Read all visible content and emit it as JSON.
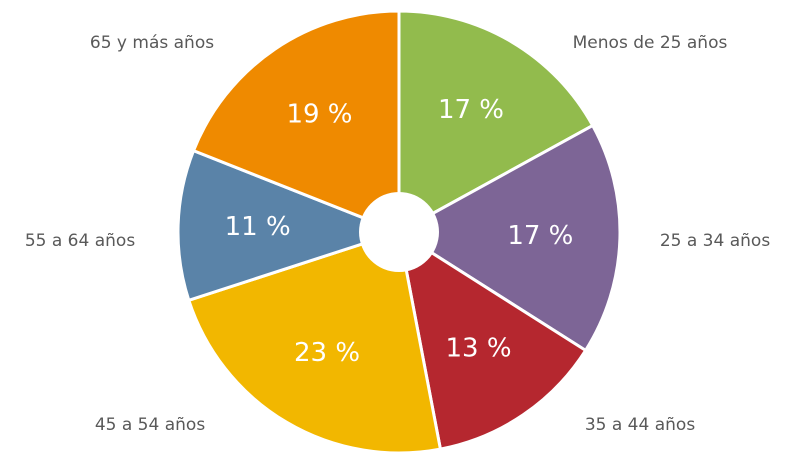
{
  "chart_data": {
    "type": "pie",
    "categories": [
      "Menos de 25 años",
      "25 a 34 años",
      "35 a 44 años",
      "45 a 54 años",
      "55 a 64 años",
      "65 y más años"
    ],
    "values": [
      17,
      17,
      13,
      23,
      11,
      19
    ],
    "value_labels": [
      "17 %",
      "17 %",
      "13 %",
      "23 %",
      "11 %",
      "19 %"
    ],
    "colors": [
      "#92bb4d",
      "#7d6596",
      "#b5272f",
      "#f2b700",
      "#5a83a8",
      "#ef8a00"
    ]
  }
}
